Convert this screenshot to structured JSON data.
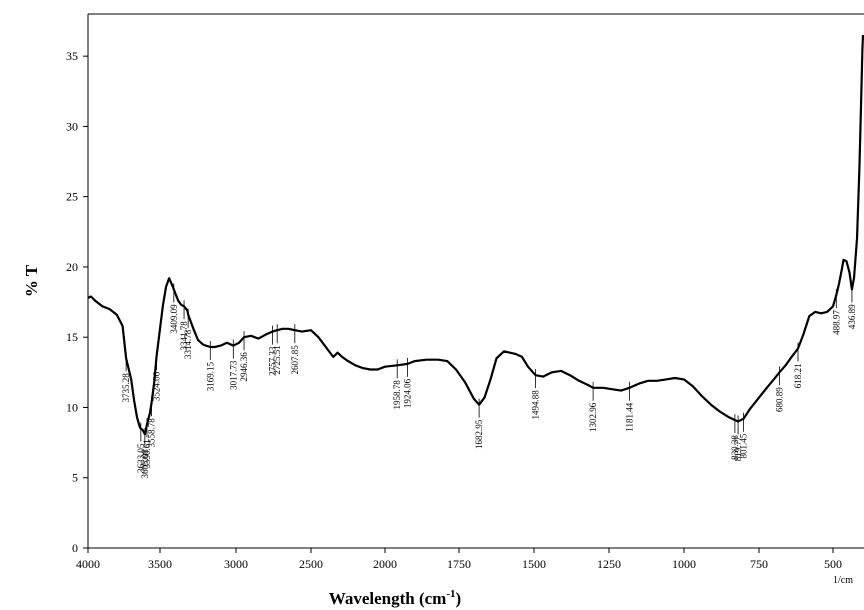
{
  "chart_data": {
    "type": "line",
    "title": "",
    "xlabel": "Wavelength (cm",
    "xlabel_sup": "-1",
    "xlabel_close": ")",
    "xunit": "1/cm",
    "ylabel": "% T",
    "xlim": [
      4000,
      400
    ],
    "ylim": [
      0,
      38
    ],
    "grid": false,
    "legend": "none",
    "x_ticks": [
      4000,
      3500,
      3000,
      2500,
      2000,
      1750,
      1500,
      1250,
      1000,
      750,
      500
    ],
    "x_tick_labels": [
      "4000",
      "3500",
      "3000",
      "2500",
      "2000",
      "1750",
      "1500",
      "1250",
      "1000",
      "750",
      "500"
    ],
    "y_ticks": [
      0,
      5,
      10,
      15,
      20,
      25,
      30,
      35
    ],
    "y_tick_labels": [
      "0",
      "5",
      "10",
      "15",
      "20",
      "25",
      "30",
      "35"
    ],
    "series": [
      {
        "color": "#000000",
        "x": [
          4000,
          3980,
          3950,
          3900,
          3850,
          3800,
          3760,
          3735.28,
          3700,
          3680,
          3660,
          3640,
          3633.05,
          3620,
          3605.08,
          3590.61,
          3570,
          3558.78,
          3540,
          3524.06,
          3500,
          3480,
          3460,
          3440,
          3420,
          3409.09,
          3380,
          3360,
          3341.78,
          3320,
          3314.78,
          3280,
          3250,
          3220,
          3200,
          3169.15,
          3140,
          3100,
          3060,
          3017.73,
          2980,
          2946.36,
          2900,
          2850,
          2800,
          2757.33,
          2725.51,
          2690,
          2650,
          2607.85,
          2560,
          2500,
          2450,
          2400,
          2350,
          2320,
          2290,
          2250,
          2200,
          2150,
          2100,
          2050,
          2000,
          1958.78,
          1924.06,
          1900,
          1860,
          1820,
          1790,
          1760,
          1730,
          1700,
          1682.95,
          1665,
          1645,
          1625,
          1600,
          1580,
          1560,
          1540,
          1520,
          1494.88,
          1470,
          1440,
          1410,
          1380,
          1350,
          1320,
          1302.96,
          1270,
          1240,
          1210,
          1181.44,
          1150,
          1120,
          1090,
          1060,
          1030,
          1000,
          970,
          940,
          910,
          880,
          850,
          830.38,
          819.77,
          801.45,
          780,
          750,
          720,
          700,
          680.89,
          660,
          640,
          618.21,
          600,
          580,
          560,
          540,
          520,
          500,
          488.97,
          480,
          470,
          465,
          455,
          445,
          436.89,
          430,
          420,
          412,
          406,
          402,
          400
        ],
        "y": [
          17.8,
          17.9,
          17.6,
          17.2,
          17.0,
          16.6,
          15.8,
          13.5,
          12.0,
          10.5,
          9.3,
          8.6,
          8.5,
          8.4,
          8.1,
          8.8,
          9.6,
          10.3,
          11.8,
          13.6,
          15.6,
          17.3,
          18.6,
          19.2,
          18.7,
          18.4,
          17.6,
          17.3,
          17.2,
          16.9,
          16.6,
          15.6,
          14.8,
          14.5,
          14.4,
          14.3,
          14.3,
          14.4,
          14.6,
          14.4,
          14.6,
          15.0,
          15.1,
          14.9,
          15.2,
          15.4,
          15.5,
          15.6,
          15.6,
          15.5,
          15.4,
          15.5,
          15.0,
          14.3,
          13.6,
          13.9,
          13.6,
          13.3,
          13.0,
          12.8,
          12.7,
          12.7,
          12.9,
          13.0,
          13.1,
          13.3,
          13.4,
          13.4,
          13.3,
          12.7,
          11.8,
          10.6,
          10.2,
          10.7,
          12.0,
          13.5,
          14.0,
          13.9,
          13.8,
          13.6,
          12.9,
          12.3,
          12.2,
          12.5,
          12.6,
          12.3,
          11.9,
          11.6,
          11.4,
          11.4,
          11.3,
          11.2,
          11.4,
          11.7,
          11.9,
          11.9,
          12.0,
          12.1,
          12.0,
          11.5,
          10.8,
          10.2,
          9.7,
          9.3,
          9.1,
          9.0,
          9.2,
          9.9,
          10.7,
          11.5,
          12.0,
          12.5,
          13.0,
          13.6,
          14.2,
          15.2,
          16.5,
          16.8,
          16.7,
          16.8,
          17.2,
          18.0,
          18.8,
          19.9,
          20.5,
          20.4,
          19.6,
          18.4,
          19.2,
          22.0,
          27.0,
          32.0,
          35.5,
          36.5
        ]
      }
    ],
    "annotations": [
      "3735.28",
      "3633.05",
      "3605.08",
      "3590.61",
      "3558.78",
      "3524.06",
      "3409.09",
      "3341.78",
      "3314.78",
      "3169.15",
      "3017.73",
      "2946.36",
      "2757.33",
      "2725.51",
      "2607.85",
      "1958.78",
      "1924.06",
      "1682.95",
      "1494.88",
      "1302.96",
      "1181.44",
      "830.38",
      "819.77",
      "801.45",
      "680.89",
      "618.21",
      "488.97",
      "436.89"
    ]
  }
}
